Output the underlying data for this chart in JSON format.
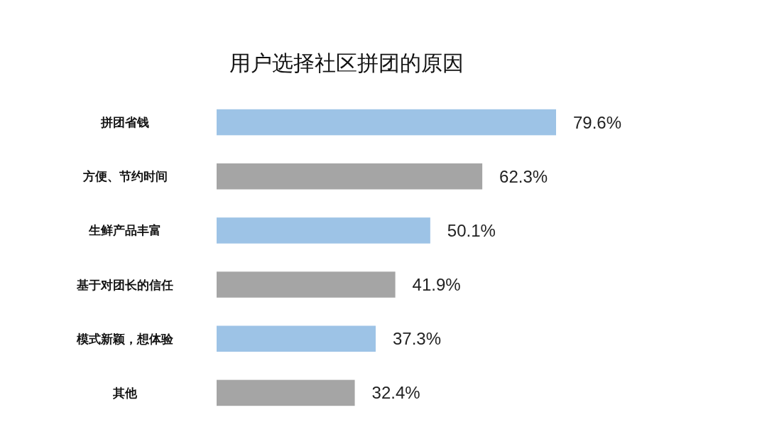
{
  "chart_data": {
    "type": "bar",
    "orientation": "horizontal",
    "title": "用户选择社区拼团的原因",
    "categories": [
      "拼团省钱",
      "方便、节约时间",
      "生鲜产品丰富",
      "基于对团长的信任",
      "模式新颖，想体验",
      "其他"
    ],
    "values": [
      79.6,
      62.3,
      50.1,
      41.9,
      37.3,
      32.4
    ],
    "colors": [
      "#9dc3e6",
      "#a5a5a5",
      "#9dc3e6",
      "#a5a5a5",
      "#9dc3e6",
      "#a5a5a5"
    ],
    "value_labels": [
      "79.6%",
      "62.3%",
      "50.1%",
      "41.9%",
      "37.3%",
      "32.4%"
    ]
  }
}
